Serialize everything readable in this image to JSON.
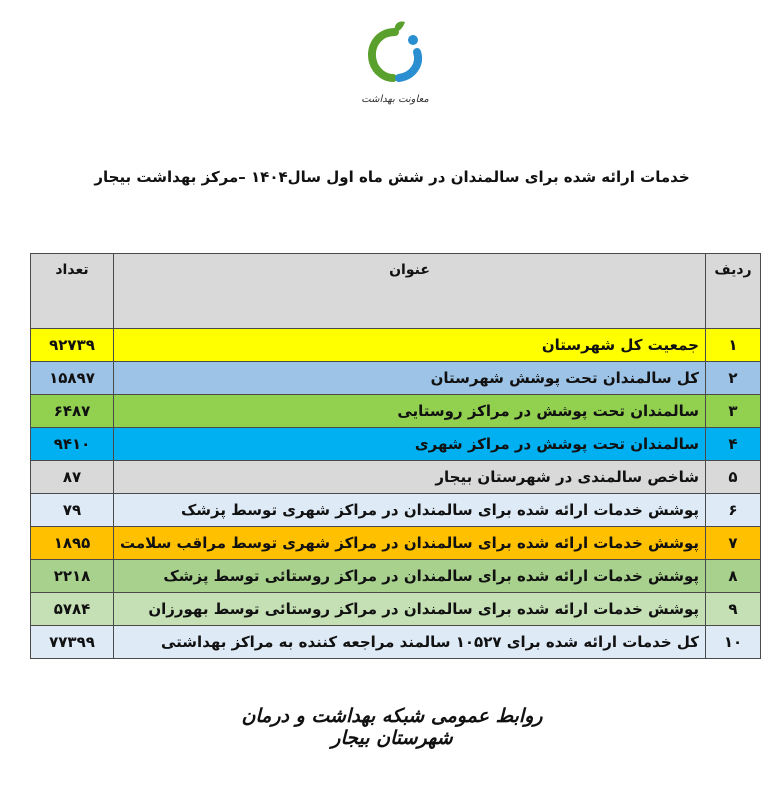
{
  "logo": {
    "text": "معاونت بهداشت"
  },
  "title": "خدمات ارائه شده برای سالمندان در شش ماه اول سال۱۴۰۴ –مرکز بهداشت بیجار",
  "table": {
    "headers": {
      "index": "ردیف",
      "title": "عنوان",
      "count": "تعداد"
    },
    "rows": [
      {
        "index": "۱",
        "title": "جمعیت کل شهرستان",
        "count": "۹۲۷۳۹",
        "color": "#ffff00"
      },
      {
        "index": "۲",
        "title": "کل سالمندان تحت پوشش شهرستان",
        "count": "۱۵۸۹۷",
        "color": "#9dc3e6"
      },
      {
        "index": "۳",
        "title": "سالمندان تحت پوشش در مراکز روستایی",
        "count": "۶۴۸۷",
        "color": "#92d050"
      },
      {
        "index": "۴",
        "title": "سالمندان تحت پوشش در مراکز شهری",
        "count": "۹۴۱۰",
        "color": "#00b0f0"
      },
      {
        "index": "۵",
        "title": "شاخص سالمندی در شهرستان بیجار",
        "count": "۸۷",
        "color": "#d9d9d9"
      },
      {
        "index": "۶",
        "title": "پوشش خدمات ارائه شده برای سالمندان در مراکز شهری توسط پزشک",
        "count": "۷۹",
        "color": "#deebf7"
      },
      {
        "index": "۷",
        "title": "پوشش خدمات ارائه شده برای سالمندان در مراکز شهری توسط مراقب سلامت",
        "count": "۱۸۹۵",
        "color": "#ffc000"
      },
      {
        "index": "۸",
        "title": "پوشش خدمات ارائه شده برای سالمندان در مراکز روستائی توسط پزشک",
        "count": "۲۲۱۸",
        "color": "#a9d18e"
      },
      {
        "index": "۹",
        "title": "پوشش خدمات ارائه شده برای سالمندان در مراکز روستائی توسط بهورزان",
        "count": "۵۷۸۴",
        "color": "#c5e0b4"
      },
      {
        "index": "۱۰",
        "title": "کل خدمات ارائه شده برای ۱۰۵۲۷ سالمند مراجعه کننده به مراکز بهداشتی",
        "count": "۷۷۳۹۹",
        "color": "#deebf7"
      }
    ]
  },
  "footer": "روابط عمومی شبکه بهداشت و درمان شهرستان بیجار"
}
